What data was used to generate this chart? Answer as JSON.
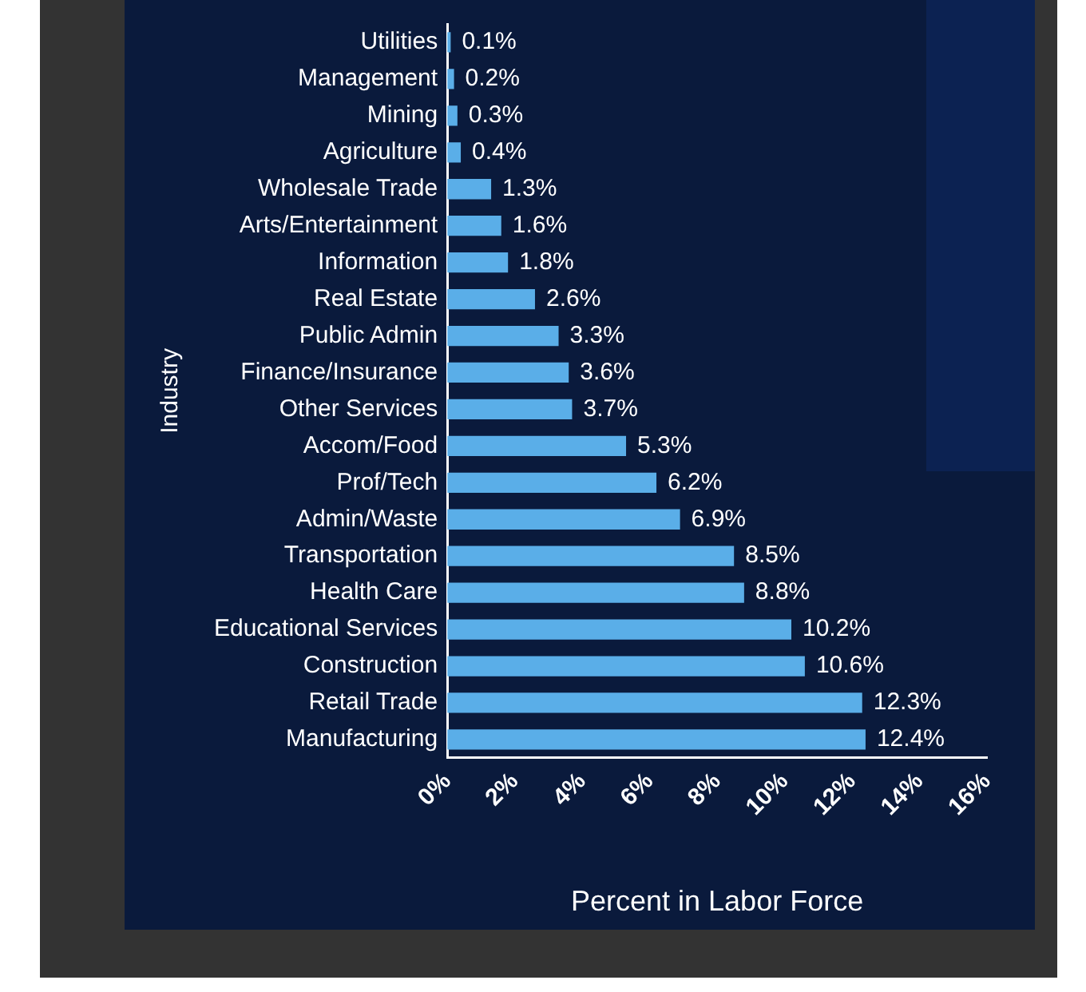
{
  "chart_data": {
    "type": "bar",
    "orientation": "horizontal",
    "xlabel": "Percent in Labor Force",
    "ylabel": "Industry",
    "categories": [
      "Utilities",
      "Management",
      "Mining",
      "Agriculture",
      "Wholesale Trade",
      "Arts/Entertainment",
      "Information",
      "Real Estate",
      "Public Admin",
      "Finance/Insurance",
      "Other Services",
      "Accom/Food",
      "Prof/Tech",
      "Admin/Waste",
      "Transportation",
      "Health Care",
      "Educational Services",
      "Construction",
      "Retail Trade",
      "Manufacturing"
    ],
    "values": [
      0.1,
      0.2,
      0.3,
      0.4,
      1.3,
      1.6,
      1.8,
      2.6,
      3.3,
      3.6,
      3.7,
      5.3,
      6.2,
      6.9,
      8.5,
      8.8,
      10.2,
      10.6,
      12.3,
      12.4
    ],
    "value_labels": [
      "0.1%",
      "0.2%",
      "0.3%",
      "0.4%",
      "1.3%",
      "1.6%",
      "1.8%",
      "2.6%",
      "3.3%",
      "3.6%",
      "3.7%",
      "5.3%",
      "6.2%",
      "6.9%",
      "8.5%",
      "8.8%",
      "10.2%",
      "10.6%",
      "12.3%",
      "12.4%"
    ],
    "color": "#5aaee8",
    "xlim": [
      0,
      16
    ],
    "xticks": [
      {
        "value": 0,
        "label": "0%"
      },
      {
        "value": 2,
        "label": "2%"
      },
      {
        "value": 4,
        "label": "4%"
      },
      {
        "value": 6,
        "label": "6%"
      },
      {
        "value": 8,
        "label": "8%"
      },
      {
        "value": 10,
        "label": "10%"
      },
      {
        "value": 12,
        "label": "12%"
      },
      {
        "value": 14,
        "label": "14%"
      },
      {
        "value": 16,
        "label": "16%"
      }
    ]
  }
}
